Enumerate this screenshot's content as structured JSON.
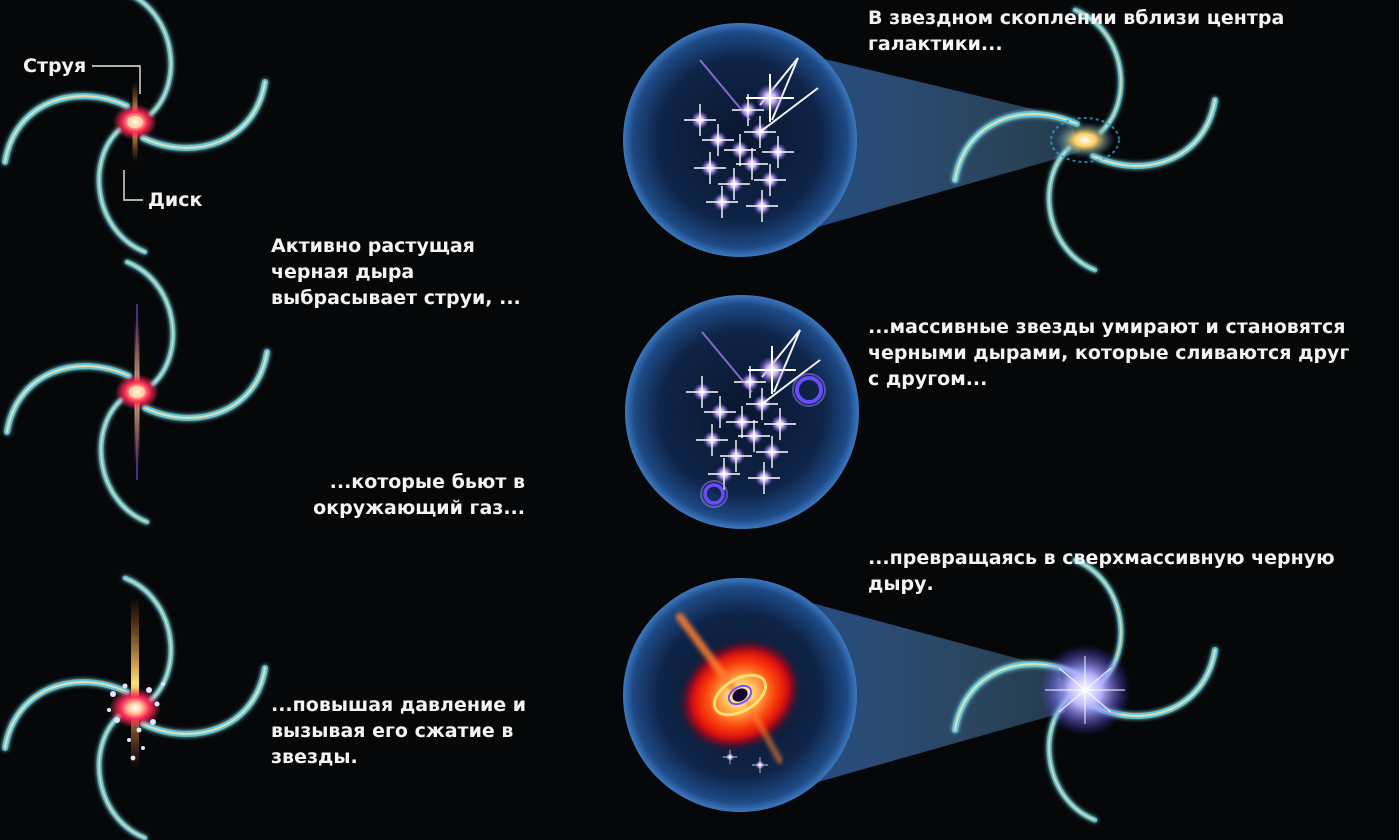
{
  "labels": {
    "jet": "Струя",
    "disk": "Диск"
  },
  "captions": {
    "left_1": "Активно растущая черная дыра выбрасывает струи, ...",
    "left_2": "...которые бьют в окружающий газ...",
    "left_3": "...повышая давление и вызывая его сжатие в звезды.",
    "right_1": "В звездном скоплении вблизи центра галактики...",
    "right_2": "...массивные звезды умирают и становятся черными дырами, которые сливаются друг с другом...",
    "right_3": "...превращаясь в сверхмассивную черную дыру."
  },
  "colors": {
    "background": "#050708",
    "arm_cyan": "#5fd0e6",
    "arm_cream": "#f3e7b0",
    "bubble": "#1c3a6a",
    "star": "#c9a8ff",
    "core_red": "#ff2a55",
    "jet_orange": "#ffb040",
    "beam": "#2f6fd6"
  },
  "icons": [
    "spiral-galaxy-icon",
    "star-cluster-icon",
    "black-hole-icon",
    "quasar-icon"
  ]
}
